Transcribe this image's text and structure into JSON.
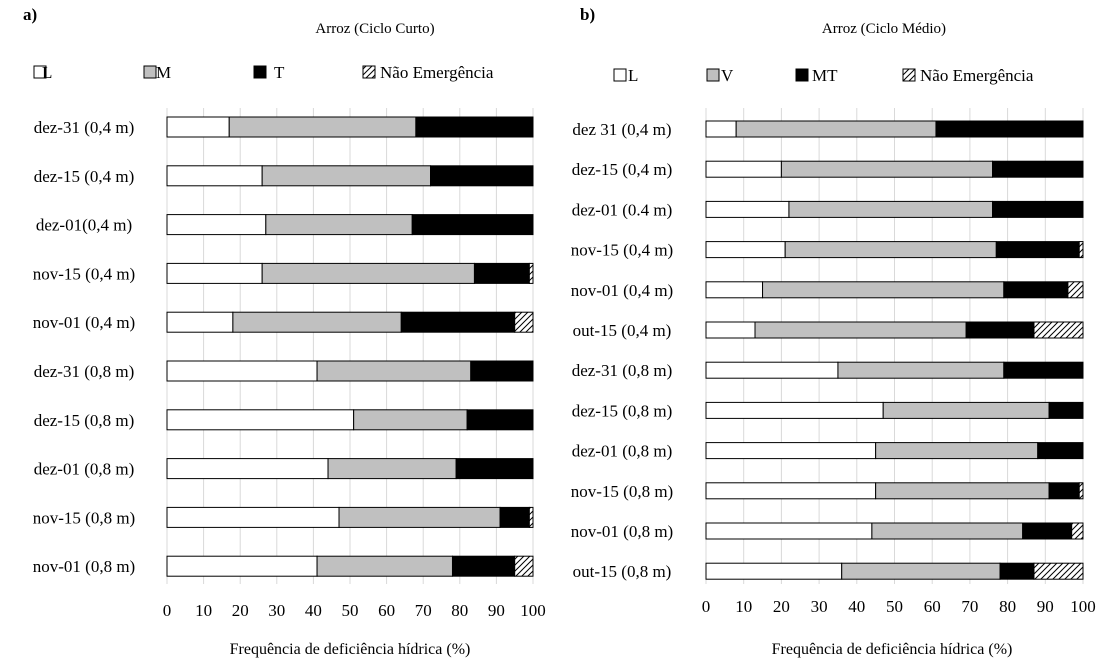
{
  "chart_data": [
    {
      "type": "bar",
      "orientation": "horizontal",
      "stacked": true,
      "panel_label": "a)",
      "title": "Arroz (Ciclo Curto)",
      "xlabel": "Frequência de deficiência hídrica (%)",
      "xlim": [
        0,
        100
      ],
      "xticks": [
        "0",
        "10",
        "20",
        "30",
        "40",
        "50",
        "60",
        "70",
        "80",
        "90",
        "100"
      ],
      "grid": true,
      "legend_position": "top",
      "categories": [
        "dez-31 (0,4 m)",
        "dez-15 (0,4 m)",
        "dez-01(0,4 m)",
        "nov-15 (0,4 m)",
        "nov-01 (0,4 m)",
        "dez-31 (0,8 m)",
        "dez-15 (0,8 m)",
        "dez-01 (0,8 m)",
        "nov-15 (0,8 m)",
        "nov-01 (0,8 m)"
      ],
      "series": [
        {
          "name": "L",
          "fill": "#ffffff",
          "values": [
            17,
            26,
            27,
            26,
            18,
            41,
            51,
            44,
            47,
            41
          ]
        },
        {
          "name": "M",
          "fill": "#c0c0c0",
          "values": [
            51,
            46,
            40,
            58,
            46,
            42,
            31,
            35,
            44,
            37
          ]
        },
        {
          "name": "T",
          "fill": "#000000",
          "values": [
            32,
            28,
            33,
            15,
            31,
            17,
            18,
            21,
            8,
            17
          ]
        },
        {
          "name": "Não Emergência",
          "fill": "hatch",
          "values": [
            0,
            0,
            0,
            1,
            5,
            0,
            0,
            0,
            1,
            5
          ]
        }
      ]
    },
    {
      "type": "bar",
      "orientation": "horizontal",
      "stacked": true,
      "panel_label": "b)",
      "title": "Arroz (Ciclo Médio)",
      "xlabel": "Frequência de deficiência hídrica (%)",
      "xlim": [
        0,
        100
      ],
      "xticks": [
        "0",
        "10",
        "20",
        "30",
        "40",
        "50",
        "60",
        "70",
        "80",
        "90",
        "100"
      ],
      "grid": true,
      "legend_position": "top",
      "categories": [
        "dez 31 (0,4 m)",
        "dez-15 (0,4 m)",
        "dez-01 (0.4 m)",
        "nov-15 (0,4 m)",
        "nov-01 (0,4 m)",
        "out-15 (0,4 m)",
        "dez-31 (0,8 m)",
        "dez-15 (0,8 m)",
        "dez-01 (0,8 m)",
        "nov-15 (0,8 m)",
        "nov-01 (0,8 m)",
        "out-15 (0,8 m)"
      ],
      "series": [
        {
          "name": "L",
          "fill": "#ffffff",
          "values": [
            8,
            20,
            22,
            21,
            15,
            13,
            35,
            47,
            45,
            45,
            44,
            36
          ]
        },
        {
          "name": "V",
          "fill": "#c0c0c0",
          "values": [
            53,
            56,
            54,
            56,
            64,
            56,
            44,
            44,
            43,
            46,
            40,
            42
          ]
        },
        {
          "name": "MT",
          "fill": "#000000",
          "values": [
            39,
            24,
            24,
            22,
            17,
            18,
            21,
            9,
            12,
            8,
            13,
            9
          ]
        },
        {
          "name": "Não Emergência",
          "fill": "hatch",
          "values": [
            0,
            0,
            0,
            1,
            4,
            13,
            0,
            0,
            0,
            1,
            3,
            13
          ]
        }
      ]
    }
  ]
}
